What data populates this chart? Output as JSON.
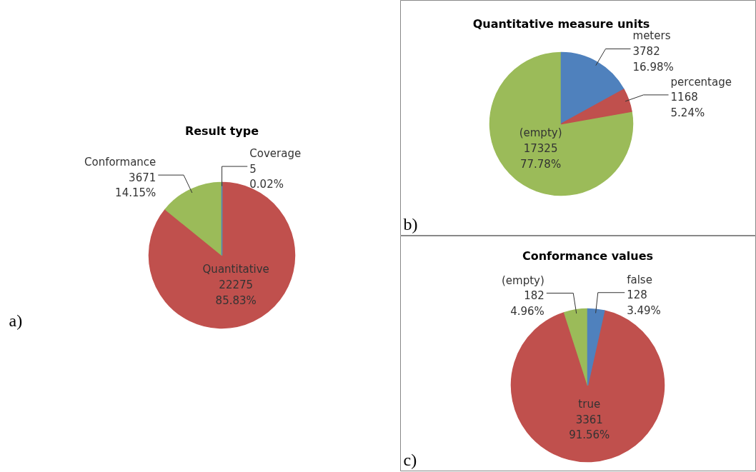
{
  "chart_data": [
    {
      "type": "pie",
      "title": "Result type",
      "categories": [
        "Coverage",
        "Quantitative",
        "Conformance"
      ],
      "values": [
        5,
        22275,
        3671
      ],
      "colors": [
        "#4f81bd",
        "#c0504d",
        "#9bbb59"
      ],
      "value_labels": [
        "5\n0.02%",
        "22275\n85.83%",
        "3671\n14.15%"
      ],
      "annotations": [
        "a)"
      ]
    },
    {
      "type": "pie",
      "title": "Quantitative measure units",
      "categories": [
        "meters",
        "percentage",
        "(empty)"
      ],
      "values": [
        3782,
        1168,
        17325
      ],
      "colors": [
        "#4f81bd",
        "#c0504d",
        "#9bbb59"
      ],
      "value_labels": [
        "3782\n16.98%",
        "1168\n5.24%",
        "17325\n77.78%"
      ],
      "annotations": [
        "b)"
      ]
    },
    {
      "type": "pie",
      "title": "Conformance values",
      "categories": [
        "false",
        "true",
        "(empty)"
      ],
      "values": [
        128,
        3361,
        182
      ],
      "colors": [
        "#4f81bd",
        "#c0504d",
        "#9bbb59"
      ],
      "value_labels": [
        "128\n3.49%",
        "3361\n91.56%",
        "182\n4.96%"
      ],
      "annotations": [
        "c)"
      ]
    }
  ]
}
